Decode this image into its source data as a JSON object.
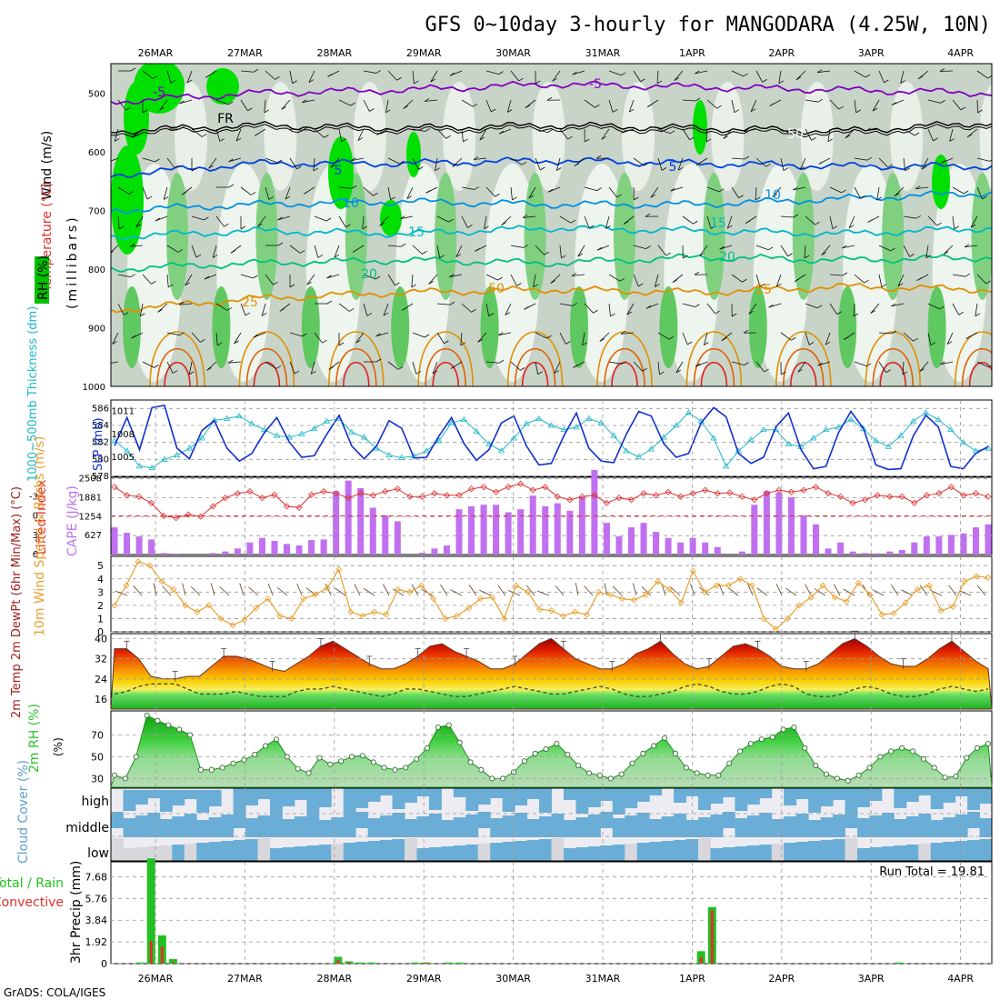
{
  "title": "GFS 0~10day 3-hourly for MANGODARA (4.25W, 10N)",
  "footer": "GrADS: COLA/IGES",
  "date_labels": [
    "26MAR",
    "27MAR",
    "28MAR",
    "29MAR",
    "30MAR",
    "31MAR",
    "1APR",
    "2APR",
    "3APR",
    "4APR"
  ],
  "colors": {
    "rh_green": "#00e000",
    "temp_contours": [
      "#8000c0",
      "#0040e0",
      "#0090e0",
      "#00b8c8",
      "#00c080",
      "#e09000",
      "#e06000",
      "#e02020",
      "#e00060"
    ],
    "slp": "#1030d0",
    "thickness": "#20b8c8",
    "lifted_index": "#e03030",
    "cape": "#c070f0",
    "wind": "#e8a030",
    "rh2m": "#30c030",
    "cloud": "#70b0e0",
    "precip_total": "#20c020",
    "precip_conv": "#e03030"
  },
  "chart_data": [
    {
      "type": "heatmap",
      "panel": "upper-air",
      "ylabel": "(millibars)",
      "left_labels": [
        "Wind (m/s)",
        "Temperature (°C)",
        "RH (%)"
      ],
      "y_ticks": [
        500,
        600,
        700,
        800,
        900,
        1000
      ],
      "ylim": [
        1000,
        450
      ],
      "contour_labels": [
        "-5",
        "FR",
        "5",
        "10",
        "15",
        "20",
        "25",
        "-5",
        "5",
        "10",
        "15",
        "20",
        "25",
        "50",
        "50"
      ],
      "temperature_contours": [
        {
          "label": "-5",
          "level_mb": [
            515,
            500,
            495,
            485,
            490,
            495,
            500
          ]
        },
        {
          "label": "FR",
          "level_mb": [
            565,
            555,
            560,
            555,
            560,
            565,
            550
          ]
        },
        {
          "label": "5",
          "level_mb": [
            640,
            620,
            620,
            615,
            620,
            625,
            625
          ]
        },
        {
          "label": "10",
          "level_mb": [
            700,
            690,
            685,
            690,
            690,
            680,
            670
          ]
        },
        {
          "label": "15",
          "level_mb": [
            745,
            735,
            740,
            730,
            735,
            740,
            730
          ]
        },
        {
          "label": "20",
          "level_mb": [
            800,
            790,
            785,
            790,
            780,
            785,
            780
          ]
        },
        {
          "label": "25",
          "level_mb": [
            870,
            850,
            840,
            835,
            840,
            830,
            835
          ]
        }
      ]
    },
    {
      "type": "line",
      "panel": "slp-thickness",
      "ylabel_left": "1000~500mb Thickness (dm)",
      "ylabel_right": "SLP (mb)",
      "y_ticks_left": [
        "586",
        "584",
        "582",
        "580",
        "578"
      ],
      "y_ticks_right": [
        "1011",
        "1008",
        "1005"
      ],
      "ylim_left": [
        578,
        587
      ],
      "ylim_right": [
        1002.5,
        1012.5
      ],
      "series": [
        {
          "name": "SLP (mb)",
          "values": [
            1006.5,
            1010.2,
            1006.0,
            1011.5,
            1011.8,
            1006.2,
            1004.8,
            1008.5,
            1009.8,
            1006.2,
            1004.5,
            1005.5,
            1008.2,
            1010.2,
            1007.0,
            1005.0,
            1005.2,
            1008.0,
            1010.5,
            1006.5,
            1004.8,
            1006.5,
            1009.8,
            1008.8,
            1004.9,
            1005.0,
            1007.8,
            1010.2,
            1006.8,
            1004.6,
            1006.0,
            1009.5,
            1010.4,
            1006.5,
            1004.0,
            1004.2,
            1007.8,
            1010.8,
            1006.2,
            1004.5,
            1004.3,
            1008.0,
            1011.0,
            1010.4,
            1006.8,
            1005.0,
            1005.5,
            1009.5,
            1011.5,
            1010.3,
            1005.5,
            1004.2,
            1005.0,
            1009.0,
            1010.8,
            1006.0,
            1003.5,
            1003.8,
            1008.2,
            1011.0,
            1008.8,
            1004.0,
            1003.4,
            1003.5,
            1007.8,
            1010.5,
            1009.0,
            1003.8,
            1003.5,
            1005.5,
            1006.4
          ]
        },
        {
          "name": "1000~500mb Thickness (dm)",
          "values": [
            582.2,
            581.0,
            579.2,
            579.0,
            580.0,
            580.5,
            581.3,
            582.5,
            584.6,
            584.8,
            585.1,
            584.2,
            583.5,
            582.8,
            582.6,
            583.0,
            583.6,
            584.5,
            584.8,
            583.2,
            582.6,
            581.3,
            580.5,
            580.2,
            580.4,
            581.0,
            582.2,
            584.3,
            584.7,
            583.3,
            581.8,
            581.0,
            582.5,
            584.2,
            584.8,
            584.0,
            583.5,
            583.8,
            584.8,
            584.3,
            582.8,
            581.0,
            580.3,
            581.2,
            582.6,
            584.0,
            585.5,
            584.5,
            582.5,
            579.2,
            581.0,
            582.3,
            583.5,
            583.5,
            581.8,
            581.5,
            582.5,
            583.5,
            583.8,
            584.7,
            583.6,
            582.2,
            581.5,
            582.8,
            584.5,
            585.5,
            584.7,
            583.5,
            582.0,
            581.0,
            581.3
          ]
        }
      ]
    },
    {
      "type": "bar",
      "panel": "cape-lifted-index",
      "ylabel_left": "Lifted Index",
      "ylabel_right": "CAPE (J/kg)",
      "y_ticks_left": [
        "-3",
        "0",
        "3",
        "6"
      ],
      "y_ticks_right": [
        "2508",
        "1881",
        "1254",
        "627"
      ],
      "ylim_cape": [
        0,
        2508
      ],
      "ylim_li": [
        6,
        -6
      ],
      "series": [
        {
          "name": "CAPE (J/kg)",
          "values": [
            900,
            720,
            600,
            500,
            50,
            30,
            0,
            0,
            50,
            100,
            200,
            400,
            550,
            450,
            350,
            300,
            480,
            500,
            2100,
            2450,
            2200,
            1550,
            1300,
            1100,
            0,
            60,
            200,
            300,
            1500,
            1600,
            1650,
            1650,
            1400,
            1500,
            1950,
            1600,
            1700,
            1450,
            1900,
            2800,
            1050,
            600,
            900,
            1050,
            750,
            550,
            400,
            550,
            400,
            250,
            0,
            100,
            1650,
            2100,
            2050,
            1900,
            1300,
            1000,
            200,
            400,
            100,
            50,
            40,
            100,
            150,
            400,
            600,
            600,
            650,
            700,
            900,
            1000
          ]
        },
        {
          "name": "Lifted Index",
          "values": [
            -4.5,
            -3.2,
            -3.0,
            -2.0,
            0.0,
            0.3,
            -0.2,
            0.1,
            -1.5,
            -2.8,
            -3.5,
            -3.8,
            -2.8,
            -3.3,
            -1.5,
            -1.3,
            -3.3,
            -3.8,
            -3.5,
            -2.8,
            -3.5,
            -3.2,
            -3.8,
            -4.2,
            -3.0,
            -3.0,
            -3.5,
            -3.2,
            -3.2,
            -4.2,
            -4.5,
            -3.7,
            -4.5,
            -5.0,
            -4.0,
            -4.5,
            -3.0,
            -2.5,
            -3.0,
            -3.2,
            -2.0,
            -2.8,
            -2.5,
            -3.5,
            -3.2,
            -3.7,
            -3.0,
            -3.5,
            -4.0,
            -3.5,
            -3.6,
            -3.0,
            -2.5,
            -3.5,
            -4.0,
            -3.7,
            -4.0,
            -4.5,
            -3.5,
            -3.0,
            -2.0,
            -2.5,
            -3.2,
            -3.0,
            -3.0,
            -2.0,
            -3.2,
            -3.5,
            -4.5,
            -3.2,
            -3.5,
            -3.0
          ]
        }
      ]
    },
    {
      "type": "line",
      "panel": "wind-10m",
      "ylabel": "10m Wind Speed & Barbs (m/s)",
      "y_ticks": [
        "5",
        "4",
        "3",
        "2",
        "1",
        "0"
      ],
      "ylim": [
        0,
        5.7
      ],
      "series": [
        {
          "name": "10m Wind Speed",
          "values": [
            2.0,
            3.5,
            5.3,
            5.0,
            3.8,
            3.2,
            2.0,
            1.5,
            2.0,
            1.0,
            0.5,
            0.9,
            1.8,
            2.5,
            1.2,
            1.0,
            2.5,
            2.8,
            3.3,
            4.7,
            1.5,
            1.2,
            1.5,
            1.3,
            3.2,
            3.0,
            3.5,
            2.5,
            1.0,
            1.2,
            1.8,
            2.5,
            2.6,
            1.0,
            3.5,
            3.0,
            1.7,
            1.6,
            1.2,
            1.5,
            1.3,
            3.0,
            2.8,
            2.5,
            2.4,
            2.8,
            3.8,
            3.2,
            2.2,
            4.6,
            3.0,
            3.5,
            3.5,
            4.0,
            3.5,
            1.0,
            0.2,
            1.0,
            2.0,
            2.6,
            3.5,
            2.6,
            2.3,
            3.7,
            2.8,
            1.3,
            1.4,
            2.2,
            3.2,
            3.5,
            1.6,
            1.9,
            3.8,
            4.2,
            4.1
          ]
        }
      ]
    },
    {
      "type": "area",
      "panel": "temp-2m",
      "ylabel": "2m Temp 2m DewPt (6hr Min/Max) (°C)",
      "y_ticks": [
        "40",
        "32",
        "24",
        "16"
      ],
      "ylim": [
        12,
        42
      ],
      "series": [
        {
          "name": "2m Temp",
          "values": [
            36,
            36,
            32,
            25,
            24,
            24,
            25,
            25,
            29,
            33,
            33,
            32,
            30,
            28,
            27,
            30,
            33,
            37,
            39,
            36,
            33,
            30,
            28,
            28,
            30,
            33,
            37,
            38,
            35,
            33,
            31,
            28,
            28,
            30,
            34,
            38,
            40,
            36,
            32,
            30,
            28,
            28,
            30,
            34,
            36,
            39,
            34,
            30,
            28,
            29,
            33,
            37,
            38,
            36,
            33,
            29,
            28,
            28,
            30,
            34,
            38,
            40,
            37,
            33,
            30,
            29,
            29,
            32,
            36,
            39,
            35,
            31,
            28
          ]
        },
        {
          "name": "2m DewPt",
          "values": [
            18,
            19,
            21,
            22,
            22,
            22,
            20,
            18,
            18,
            18,
            19,
            18,
            17,
            17,
            17,
            19,
            20,
            20,
            21,
            20,
            19,
            18,
            17,
            18,
            20,
            20,
            19,
            18,
            17,
            17,
            18,
            19,
            20,
            21,
            20,
            19,
            18,
            18,
            19,
            20,
            21,
            20,
            18,
            17,
            17,
            18,
            19,
            21,
            22,
            21,
            19,
            18,
            18,
            19,
            21,
            22,
            21,
            18,
            17,
            17,
            18,
            20,
            21,
            20,
            18,
            17,
            17,
            18,
            20,
            21,
            20,
            19,
            20
          ]
        }
      ]
    },
    {
      "type": "area",
      "panel": "rh-2m",
      "ylabel": "2m RH (%)",
      "y_ticks": [
        "70",
        "50",
        "30"
      ],
      "ylim": [
        22,
        92
      ],
      "series": [
        {
          "name": "2m RH",
          "values": [
            33,
            30,
            50,
            88,
            83,
            79,
            75,
            70,
            38,
            38,
            40,
            44,
            47,
            52,
            60,
            66,
            50,
            39,
            35,
            49,
            43,
            46,
            50,
            51,
            45,
            40,
            38,
            40,
            48,
            58,
            77,
            79,
            63,
            45,
            38,
            30,
            30,
            36,
            46,
            53,
            57,
            62,
            52,
            42,
            35,
            33,
            30,
            34,
            44,
            53,
            60,
            67,
            53,
            40,
            35,
            33,
            33,
            44,
            55,
            62,
            66,
            68,
            75,
            77,
            58,
            42,
            34,
            30,
            28,
            33,
            40,
            50,
            55,
            58,
            55,
            48,
            40,
            31,
            32,
            49,
            58,
            62
          ]
        }
      ]
    },
    {
      "type": "heatmap",
      "panel": "cloud-cover",
      "ylabel": "Cloud Cover (%)",
      "y_ticks": [
        "high",
        "middle",
        "low"
      ]
    },
    {
      "type": "bar",
      "panel": "precip",
      "ylabel": "3hr Precip (mm)",
      "left_labels": [
        "Total / Rain",
        "Convective"
      ],
      "run_total_label": "Run Total = 19.81",
      "y_ticks": [
        "7.68",
        "5.76",
        "3.84",
        "1.92",
        "0"
      ],
      "ylim": [
        0,
        9.0
      ],
      "series": [
        {
          "name": "Total",
          "values": [
            0,
            0.1,
            9.3,
            2.5,
            0.4,
            0,
            0,
            0,
            0,
            0,
            0,
            0,
            0,
            0,
            0,
            0,
            0,
            0,
            0,
            0.6,
            0.2,
            0.1,
            0.1,
            0,
            0,
            0,
            0.1,
            0.1,
            0,
            0.1,
            0.1,
            0,
            0,
            0,
            0,
            0,
            0,
            0,
            0,
            0,
            0,
            0,
            0,
            0,
            0,
            0,
            0,
            0,
            0,
            0,
            0,
            0,
            1.1,
            5.0,
            0,
            0,
            0,
            0,
            0,
            0,
            0,
            0,
            0,
            0,
            0,
            0,
            0,
            0,
            0,
            0,
            0.1,
            0,
            0,
            0,
            0,
            0,
            0,
            0,
            0,
            0,
            0
          ]
        },
        {
          "name": "Convective",
          "values": [
            0,
            0,
            2.0,
            1.5,
            0.1,
            0,
            0,
            0,
            0,
            0,
            0,
            0,
            0,
            0,
            0,
            0,
            0,
            0,
            0,
            0.3,
            0.1,
            0,
            0,
            0,
            0,
            0,
            0,
            0.1,
            0,
            0,
            0,
            0,
            0,
            0,
            0,
            0,
            0,
            0,
            0,
            0,
            0,
            0,
            0,
            0,
            0,
            0,
            0,
            0,
            0,
            0,
            0,
            0,
            0.6,
            4.7,
            0,
            0,
            0,
            0,
            0,
            0,
            0,
            0,
            0,
            0,
            0,
            0,
            0,
            0,
            0,
            0,
            0,
            0,
            0,
            0,
            0,
            0,
            0,
            0,
            0,
            0,
            0
          ]
        }
      ]
    }
  ]
}
